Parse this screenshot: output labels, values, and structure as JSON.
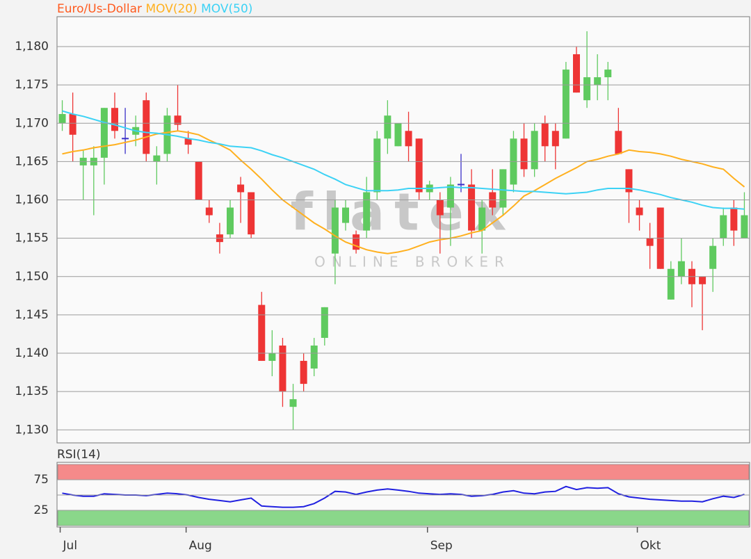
{
  "chart_data": [
    {
      "type": "candlestick",
      "watermark": [
        "flatex",
        "ONLINE BROKER"
      ],
      "categories": [
        "Jul",
        null,
        null,
        null,
        null,
        null,
        null,
        null,
        null,
        null,
        null,
        null,
        "Aug",
        null,
        null,
        null,
        null,
        null,
        null,
        null,
        null,
        null,
        null,
        null,
        null,
        null,
        null,
        null,
        null,
        null,
        null,
        null,
        null,
        null,
        null,
        "Sep",
        null,
        null,
        null,
        null,
        null,
        null,
        null,
        null,
        null,
        null,
        null,
        null,
        null,
        null,
        null,
        null,
        null,
        null,
        null,
        "Okt",
        null,
        null,
        null,
        null,
        null,
        null,
        null,
        null,
        null,
        null
      ],
      "up_color": "#5fca5f",
      "down_color": "#ee3535",
      "doji_color": "#3a2fc8",
      "series": [
        {
          "name": "Euro/Us-Dollar",
          "color": "#ff5a1e",
          "open": [
            1.17,
            1.1712,
            1.1645,
            1.1645,
            1.1655,
            1.172,
            1.168,
            1.1685,
            1.173,
            1.165,
            1.166,
            1.171,
            1.168,
            1.165,
            1.159,
            1.1555,
            1.1555,
            1.162,
            1.161,
            1.1463,
            1.139,
            1.141,
            1.133,
            1.139,
            1.138,
            1.142,
            1.153,
            1.157,
            1.1555,
            1.156,
            1.161,
            1.168,
            1.167,
            1.169,
            1.168,
            1.161,
            1.16,
            1.159,
            1.162,
            1.162,
            1.156,
            1.161,
            1.159,
            1.162,
            1.168,
            1.164,
            1.17,
            1.169,
            1.168,
            1.179,
            1.173,
            1.175,
            1.176,
            1.169,
            1.164,
            1.159,
            1.155,
            1.159,
            1.147,
            1.15,
            1.151,
            1.15,
            1.151,
            1.155,
            1.159,
            1.155
          ],
          "high": [
            1.173,
            1.174,
            1.1665,
            1.167,
            1.172,
            1.174,
            1.172,
            1.171,
            1.174,
            1.167,
            1.172,
            1.175,
            1.169,
            1.165,
            1.16,
            1.157,
            1.16,
            1.163,
            1.161,
            1.148,
            1.143,
            1.142,
            1.136,
            1.14,
            1.142,
            1.146,
            1.16,
            1.16,
            1.156,
            1.163,
            1.169,
            1.173,
            1.17,
            1.1715,
            1.168,
            1.1625,
            1.161,
            1.163,
            1.166,
            1.164,
            1.16,
            1.164,
            1.164,
            1.169,
            1.17,
            1.17,
            1.171,
            1.17,
            1.178,
            1.18,
            1.182,
            1.179,
            1.178,
            1.172,
            1.164,
            1.16,
            1.157,
            1.159,
            1.152,
            1.155,
            1.152,
            1.15,
            1.155,
            1.159,
            1.16,
            1.161
          ],
          "low": [
            1.169,
            1.165,
            1.16,
            1.158,
            1.162,
            1.168,
            1.166,
            1.167,
            1.165,
            1.162,
            1.165,
            1.169,
            1.166,
            1.16,
            1.157,
            1.153,
            1.155,
            1.157,
            1.155,
            1.139,
            1.137,
            1.133,
            1.13,
            1.135,
            1.137,
            1.141,
            1.149,
            1.156,
            1.153,
            1.155,
            1.16,
            1.166,
            1.167,
            1.165,
            1.16,
            1.16,
            1.153,
            1.154,
            1.161,
            1.155,
            1.153,
            1.158,
            1.158,
            1.161,
            1.163,
            1.163,
            1.165,
            1.164,
            1.168,
            1.174,
            1.172,
            1.173,
            1.173,
            1.166,
            1.157,
            1.156,
            1.151,
            1.151,
            1.147,
            1.149,
            1.146,
            1.143,
            1.148,
            1.154,
            1.154,
            1.155
          ],
          "close": [
            1.1712,
            1.1685,
            1.1655,
            1.1655,
            1.172,
            1.169,
            1.168,
            1.1695,
            1.166,
            1.1658,
            1.171,
            1.1698,
            1.1672,
            1.16,
            1.158,
            1.1545,
            1.159,
            1.161,
            1.1555,
            1.139,
            1.14,
            1.135,
            1.134,
            1.136,
            1.141,
            1.146,
            1.159,
            1.159,
            1.1535,
            1.161,
            1.168,
            1.171,
            1.17,
            1.167,
            1.161,
            1.162,
            1.158,
            1.162,
            1.162,
            1.156,
            1.159,
            1.159,
            1.164,
            1.168,
            1.164,
            1.169,
            1.167,
            1.167,
            1.177,
            1.174,
            1.176,
            1.176,
            1.177,
            1.166,
            1.161,
            1.158,
            1.154,
            1.151,
            1.151,
            1.152,
            1.149,
            1.149,
            1.154,
            1.158,
            1.156,
            1.158
          ]
        },
        {
          "name": "MOV(20)",
          "color": "#ffb01e",
          "values": [
            1.166,
            1.1663,
            1.1665,
            1.1668,
            1.167,
            1.1672,
            1.1675,
            1.1678,
            1.1682,
            1.1686,
            1.1688,
            1.169,
            1.1688,
            1.1685,
            1.1678,
            1.1672,
            1.1665,
            1.1652,
            1.164,
            1.1627,
            1.1613,
            1.16,
            1.159,
            1.158,
            1.157,
            1.1562,
            1.1553,
            1.1545,
            1.154,
            1.1535,
            1.1532,
            1.153,
            1.1532,
            1.1535,
            1.154,
            1.1545,
            1.1548,
            1.155,
            1.1553,
            1.1557,
            1.156,
            1.157,
            1.158,
            1.1592,
            1.1605,
            1.1612,
            1.162,
            1.1628,
            1.1635,
            1.1642,
            1.165,
            1.1653,
            1.1657,
            1.166,
            1.1665,
            1.1663,
            1.1662,
            1.166,
            1.1657,
            1.1653,
            1.165,
            1.1647,
            1.1643,
            1.164,
            1.1628,
            1.1617
          ]
        },
        {
          "name": "MOV(50)",
          "color": "#3cd2f5",
          "values": [
            1.1716,
            1.1712,
            1.1709,
            1.1705,
            1.1701,
            1.1698,
            1.1694,
            1.169,
            1.1688,
            1.1687,
            1.1685,
            1.1683,
            1.168,
            1.1678,
            1.1675,
            1.1673,
            1.167,
            1.1669,
            1.1668,
            1.1664,
            1.1659,
            1.1655,
            1.165,
            1.1645,
            1.164,
            1.1633,
            1.1627,
            1.162,
            1.1616,
            1.1612,
            1.1612,
            1.1612,
            1.1613,
            1.1615,
            1.1615,
            1.1615,
            1.1616,
            1.1617,
            1.1616,
            1.1616,
            1.1615,
            1.1614,
            1.1613,
            1.1612,
            1.1611,
            1.1611,
            1.161,
            1.1609,
            1.1608,
            1.1609,
            1.161,
            1.1613,
            1.1615,
            1.1615,
            1.1615,
            1.1613,
            1.161,
            1.1607,
            1.1603,
            1.16,
            1.1597,
            1.1593,
            1.159,
            1.1589,
            1.1589,
            1.1588
          ]
        }
      ],
      "ylim": [
        1.1283,
        1.1839
      ],
      "yticks": [
        {
          "value": 1.13,
          "label": "1,130"
        },
        {
          "value": 1.135,
          "label": "1,135"
        },
        {
          "value": 1.14,
          "label": "1,140"
        },
        {
          "value": 1.145,
          "label": "1,145"
        },
        {
          "value": 1.15,
          "label": "1,150"
        },
        {
          "value": 1.155,
          "label": "1,155"
        },
        {
          "value": 1.16,
          "label": "1,160"
        },
        {
          "value": 1.165,
          "label": "1,165"
        },
        {
          "value": 1.17,
          "label": "1,170"
        },
        {
          "value": 1.175,
          "label": "1,175"
        },
        {
          "value": 1.18,
          "label": "1,180"
        }
      ],
      "grid": true
    },
    {
      "type": "line",
      "title": "RSI(14)",
      "title_color": "#1a1adc",
      "series": [
        {
          "color": "#2020e0",
          "values": [
            53,
            50,
            48,
            48,
            52,
            51,
            50,
            50,
            49,
            51,
            53,
            52,
            50,
            46,
            43,
            41,
            39,
            42,
            45,
            32,
            31,
            30,
            30,
            31,
            36,
            45,
            56,
            55,
            51,
            55,
            58,
            60,
            58,
            56,
            53,
            52,
            51,
            52,
            51,
            48,
            49,
            51,
            55,
            57,
            53,
            52,
            55,
            56,
            64,
            59,
            62,
            61,
            62,
            52,
            47,
            45,
            43,
            42,
            41,
            40,
            40,
            39,
            44,
            48,
            46,
            51
          ]
        }
      ],
      "bands": [
        {
          "from": 75,
          "to": 100,
          "color": "#f58a8a"
        },
        {
          "from": 0,
          "to": 25,
          "color": "#8ad78a"
        }
      ],
      "midline": 50,
      "ylim": [
        -2.3,
        103.4
      ],
      "yticks": [
        25,
        75
      ],
      "grid": true
    }
  ]
}
